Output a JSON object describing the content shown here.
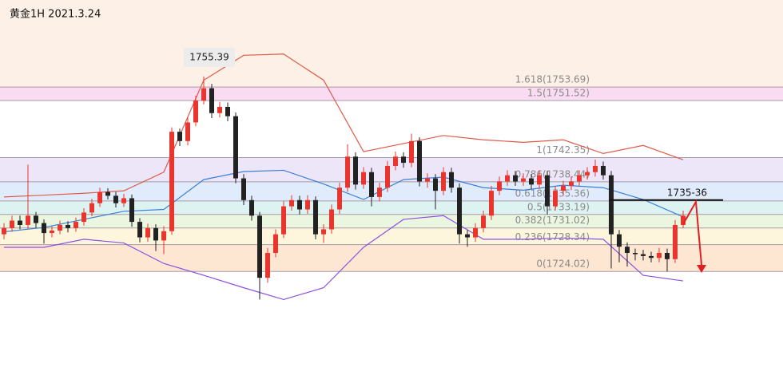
{
  "chart_data": {
    "type": "candlestick",
    "title": "黄金1H 2021.3.24",
    "ylim": [
      1708,
      1767.7
    ],
    "xlim": [
      -0.5,
      97.5
    ],
    "up_color": "#e8362f",
    "down_color": "#222222",
    "open": [
      1730.0,
      1731.0,
      1732.2,
      1731.5,
      1733.0,
      1731.8,
      1730.2,
      1730.6,
      1731.5,
      1731.0,
      1732.0,
      1733.5,
      1735.0,
      1736.8,
      1736.2,
      1735.0,
      1735.8,
      1732.0,
      1729.5,
      1731.0,
      1729.0,
      1730.5,
      1746.5,
      1745.0,
      1748.0,
      1751.5,
      1753.5,
      1749.5,
      1750.5,
      1749.0,
      1739.0,
      1735.5,
      1733.0,
      1723.0,
      1727.0,
      1730.0,
      1734.5,
      1735.5,
      1734.0,
      1735.5,
      1730.0,
      1730.8,
      1734.0,
      1737.5,
      1742.5,
      1738.0,
      1740.0,
      1736.0,
      1737.5,
      1741.0,
      1742.5,
      1741.5,
      1745.0,
      1738.5,
      1739.0,
      1737.0,
      1740.0,
      1737.5,
      1730.0,
      1729.5,
      1731.0,
      1733.0,
      1737.0,
      1738.5,
      1739.5,
      1738.5,
      1739.0,
      1738.0,
      1739.5,
      1734.5,
      1737.0,
      1737.8,
      1738.5,
      1739.5,
      1740.0,
      1741.0,
      1739.5,
      1730.0,
      1728.0,
      1727.0,
      1726.8,
      1726.5,
      1726.2,
      1727.0,
      1726.0,
      1731.5
    ],
    "high": [
      1731.8,
      1733.0,
      1733.0,
      1741.2,
      1733.6,
      1732.4,
      1731.3,
      1732.2,
      1732.1,
      1732.7,
      1734.2,
      1735.7,
      1737.5,
      1737.4,
      1736.8,
      1736.5,
      1736.4,
      1732.6,
      1731.7,
      1731.6,
      1731.3,
      1747.2,
      1747.0,
      1748.8,
      1752.3,
      1755.39,
      1754.2,
      1751.3,
      1751.2,
      1749.6,
      1739.7,
      1736.2,
      1733.6,
      1727.8,
      1730.8,
      1735.3,
      1736.3,
      1736.2,
      1736.3,
      1736.1,
      1731.6,
      1734.8,
      1738.3,
      1744.5,
      1743.2,
      1740.8,
      1740.7,
      1738.3,
      1741.8,
      1743.3,
      1743.2,
      1746.2,
      1745.6,
      1739.8,
      1739.7,
      1740.8,
      1740.7,
      1738.2,
      1730.7,
      1731.8,
      1733.8,
      1737.8,
      1739.3,
      1740.3,
      1740.2,
      1739.8,
      1739.7,
      1740.3,
      1740.2,
      1737.8,
      1738.6,
      1739.3,
      1740.3,
      1740.8,
      1742.0,
      1741.7,
      1740.2,
      1730.7,
      1728.7,
      1727.7,
      1727.5,
      1727.2,
      1727.8,
      1727.7,
      1732.3,
      1733.8
    ],
    "low": [
      1729.2,
      1730.4,
      1730.8,
      1730.9,
      1731.0,
      1728.5,
      1729.5,
      1730.0,
      1730.3,
      1730.4,
      1731.4,
      1732.9,
      1734.4,
      1735.6,
      1734.3,
      1734.4,
      1731.2,
      1728.7,
      1728.8,
      1727.3,
      1726.8,
      1729.9,
      1744.2,
      1744.3,
      1747.4,
      1750.9,
      1748.7,
      1748.8,
      1748.2,
      1738.2,
      1734.7,
      1732.2,
      1719.5,
      1722.2,
      1726.3,
      1729.4,
      1733.8,
      1733.2,
      1733.3,
      1729.2,
      1728.6,
      1730.1,
      1733.3,
      1736.8,
      1737.2,
      1737.3,
      1734.5,
      1735.3,
      1736.8,
      1740.3,
      1740.7,
      1740.8,
      1737.7,
      1737.5,
      1734.0,
      1736.3,
      1736.7,
      1728.5,
      1728.0,
      1728.8,
      1730.3,
      1732.3,
      1736.3,
      1737.8,
      1737.8,
      1737.8,
      1737.3,
      1737.3,
      1733.2,
      1733.8,
      1736.3,
      1737.1,
      1737.8,
      1738.8,
      1739.3,
      1738.8,
      1724.5,
      1725.5,
      1724.8,
      1725.8,
      1725.8,
      1725.5,
      1725.5,
      1724.0,
      1725.4,
      1731.0
    ],
    "close": [
      1731.0,
      1732.2,
      1731.5,
      1733.0,
      1731.8,
      1730.2,
      1730.6,
      1731.5,
      1731.0,
      1732.0,
      1733.5,
      1735.0,
      1736.8,
      1736.2,
      1735.0,
      1735.8,
      1732.0,
      1729.5,
      1731.0,
      1729.0,
      1730.5,
      1746.5,
      1745.0,
      1748.0,
      1751.5,
      1753.5,
      1749.5,
      1750.5,
      1749.0,
      1739.0,
      1735.5,
      1733.0,
      1723.0,
      1727.0,
      1730.0,
      1734.5,
      1735.5,
      1734.0,
      1735.5,
      1730.0,
      1730.8,
      1734.0,
      1737.5,
      1742.5,
      1738.0,
      1740.0,
      1736.0,
      1737.5,
      1741.0,
      1742.5,
      1741.5,
      1745.0,
      1738.5,
      1739.0,
      1737.0,
      1740.0,
      1737.5,
      1730.0,
      1729.5,
      1731.0,
      1733.0,
      1737.0,
      1738.5,
      1739.5,
      1738.5,
      1739.0,
      1738.0,
      1739.5,
      1734.5,
      1737.0,
      1737.8,
      1738.5,
      1739.5,
      1740.0,
      1741.0,
      1739.5,
      1730.0,
      1728.0,
      1727.0,
      1726.8,
      1726.5,
      1726.2,
      1727.0,
      1726.0,
      1731.5,
      1733.0
    ],
    "line_x": [
      0,
      5,
      10,
      15,
      20,
      25,
      30,
      35,
      40,
      45,
      50,
      55,
      60,
      65,
      70,
      75,
      80,
      85
    ],
    "lines": [
      {
        "color": "#e05a48",
        "values": [
          1736.0,
          1736.3,
          1736.6,
          1737.0,
          1740.0,
          1754.8,
          1758.8,
          1759.0,
          1754.8,
          1743.3,
          1744.6,
          1745.9,
          1745.2,
          1744.8,
          1745.2,
          1743.0,
          1744.3,
          1742.0
        ]
      },
      {
        "color": "#3b7fd8",
        "values": [
          1730.4,
          1731.1,
          1732.4,
          1733.7,
          1734.0,
          1738.8,
          1740.1,
          1740.3,
          1738.1,
          1735.6,
          1738.8,
          1739.2,
          1737.5,
          1737.1,
          1737.9,
          1737.5,
          1735.6,
          1732.8
        ]
      },
      {
        "color": "#8a52e0",
        "values": [
          1727.9,
          1727.9,
          1729.2,
          1728.6,
          1725.3,
          1723.4,
          1721.4,
          1719.5,
          1721.4,
          1727.9,
          1732.4,
          1733.0,
          1729.2,
          1729.2,
          1729.4,
          1729.2,
          1723.4,
          1722.5
        ]
      }
    ],
    "fib_levels": [
      {
        "value": 1724.02,
        "label": "0(1724.02)",
        "fill": "#fde6d2"
      },
      {
        "value": 1728.34,
        "label": "0.236(1728.34)",
        "fill": "#fdf6dc"
      },
      {
        "value": 1731.02,
        "label": "0.382(1731.02)",
        "fill": "#eaf6e0"
      },
      {
        "value": 1733.19,
        "label": "0.5(1733.19)",
        "fill": "#ddf3f2"
      },
      {
        "value": 1735.36,
        "label": "0.618(1735.36)",
        "fill": "#e0ecfb"
      },
      {
        "value": 1738.44,
        "label": "0.786(1738.44)",
        "fill": "#ece6f8"
      },
      {
        "value": 1742.35,
        "label": "1(1742.35)",
        "fill": "#ffffff"
      },
      {
        "value": 1751.52,
        "label": "1.5(1751.52)",
        "fill": "#fadcf2"
      },
      {
        "value": 1753.69,
        "label": "1.618(1753.69)",
        "fill": "#fdf0e6"
      }
    ],
    "peak": 1755.39,
    "target": {
      "value": 1735.5,
      "label": "1735-36"
    }
  }
}
